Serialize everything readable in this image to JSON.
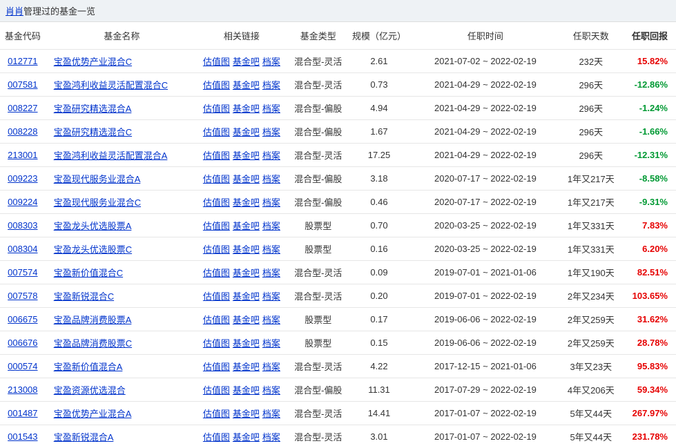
{
  "header": {
    "manager_link": "肖肖",
    "title_suffix": "管理过的基金一览"
  },
  "table": {
    "columns": {
      "code": "基金代码",
      "name": "基金名称",
      "links": "相关链接",
      "type": "基金类型",
      "scale": "规模（亿元）",
      "period": "任职时间",
      "days": "任职天数",
      "ret": "任职回报"
    },
    "link_labels": {
      "gzt": "估值图",
      "jjb": "基金吧",
      "da": "档案"
    },
    "rows": [
      {
        "code": "012771",
        "name": "宝盈优势产业混合C",
        "type": "混合型-灵活",
        "scale": "2.61",
        "period": "2021-07-02 ~ 2022-02-19",
        "days": "232天",
        "ret": "15.82%",
        "dir": "pos"
      },
      {
        "code": "007581",
        "name": "宝盈鸿利收益灵活配置混合C",
        "type": "混合型-灵活",
        "scale": "0.73",
        "period": "2021-04-29 ~ 2022-02-19",
        "days": "296天",
        "ret": "-12.86%",
        "dir": "neg"
      },
      {
        "code": "008227",
        "name": "宝盈研究精选混合A",
        "type": "混合型-偏股",
        "scale": "4.94",
        "period": "2021-04-29 ~ 2022-02-19",
        "days": "296天",
        "ret": "-1.24%",
        "dir": "neg"
      },
      {
        "code": "008228",
        "name": "宝盈研究精选混合C",
        "type": "混合型-偏股",
        "scale": "1.67",
        "period": "2021-04-29 ~ 2022-02-19",
        "days": "296天",
        "ret": "-1.66%",
        "dir": "neg"
      },
      {
        "code": "213001",
        "name": "宝盈鸿利收益灵活配置混合A",
        "type": "混合型-灵活",
        "scale": "17.25",
        "period": "2021-04-29 ~ 2022-02-19",
        "days": "296天",
        "ret": "-12.31%",
        "dir": "neg"
      },
      {
        "code": "009223",
        "name": "宝盈现代服务业混合A",
        "type": "混合型-偏股",
        "scale": "3.18",
        "period": "2020-07-17 ~ 2022-02-19",
        "days": "1年又217天",
        "ret": "-8.58%",
        "dir": "neg"
      },
      {
        "code": "009224",
        "name": "宝盈现代服务业混合C",
        "type": "混合型-偏股",
        "scale": "0.46",
        "period": "2020-07-17 ~ 2022-02-19",
        "days": "1年又217天",
        "ret": "-9.31%",
        "dir": "neg"
      },
      {
        "code": "008303",
        "name": "宝盈龙头优选股票A",
        "type": "股票型",
        "scale": "0.70",
        "period": "2020-03-25 ~ 2022-02-19",
        "days": "1年又331天",
        "ret": "7.83%",
        "dir": "pos"
      },
      {
        "code": "008304",
        "name": "宝盈龙头优选股票C",
        "type": "股票型",
        "scale": "0.16",
        "period": "2020-03-25 ~ 2022-02-19",
        "days": "1年又331天",
        "ret": "6.20%",
        "dir": "pos"
      },
      {
        "code": "007574",
        "name": "宝盈新价值混合C",
        "type": "混合型-灵活",
        "scale": "0.09",
        "period": "2019-07-01 ~ 2021-01-06",
        "days": "1年又190天",
        "ret": "82.51%",
        "dir": "pos"
      },
      {
        "code": "007578",
        "name": "宝盈新锐混合C",
        "type": "混合型-灵活",
        "scale": "0.20",
        "period": "2019-07-01 ~ 2022-02-19",
        "days": "2年又234天",
        "ret": "103.65%",
        "dir": "pos"
      },
      {
        "code": "006675",
        "name": "宝盈品牌消费股票A",
        "type": "股票型",
        "scale": "0.17",
        "period": "2019-06-06 ~ 2022-02-19",
        "days": "2年又259天",
        "ret": "31.62%",
        "dir": "pos"
      },
      {
        "code": "006676",
        "name": "宝盈品牌消费股票C",
        "type": "股票型",
        "scale": "0.15",
        "period": "2019-06-06 ~ 2022-02-19",
        "days": "2年又259天",
        "ret": "28.78%",
        "dir": "pos"
      },
      {
        "code": "000574",
        "name": "宝盈新价值混合A",
        "type": "混合型-灵活",
        "scale": "4.22",
        "period": "2017-12-15 ~ 2021-01-06",
        "days": "3年又23天",
        "ret": "95.83%",
        "dir": "pos"
      },
      {
        "code": "213008",
        "name": "宝盈资源优选混合",
        "type": "混合型-偏股",
        "scale": "11.31",
        "period": "2017-07-29 ~ 2022-02-19",
        "days": "4年又206天",
        "ret": "59.34%",
        "dir": "pos"
      },
      {
        "code": "001487",
        "name": "宝盈优势产业混合A",
        "type": "混合型-灵活",
        "scale": "14.41",
        "period": "2017-01-07 ~ 2022-02-19",
        "days": "5年又44天",
        "ret": "267.97%",
        "dir": "pos"
      },
      {
        "code": "001543",
        "name": "宝盈新锐混合A",
        "type": "混合型-灵活",
        "scale": "3.01",
        "period": "2017-01-07 ~ 2022-02-19",
        "days": "5年又44天",
        "ret": "231.78%",
        "dir": "pos"
      }
    ]
  }
}
